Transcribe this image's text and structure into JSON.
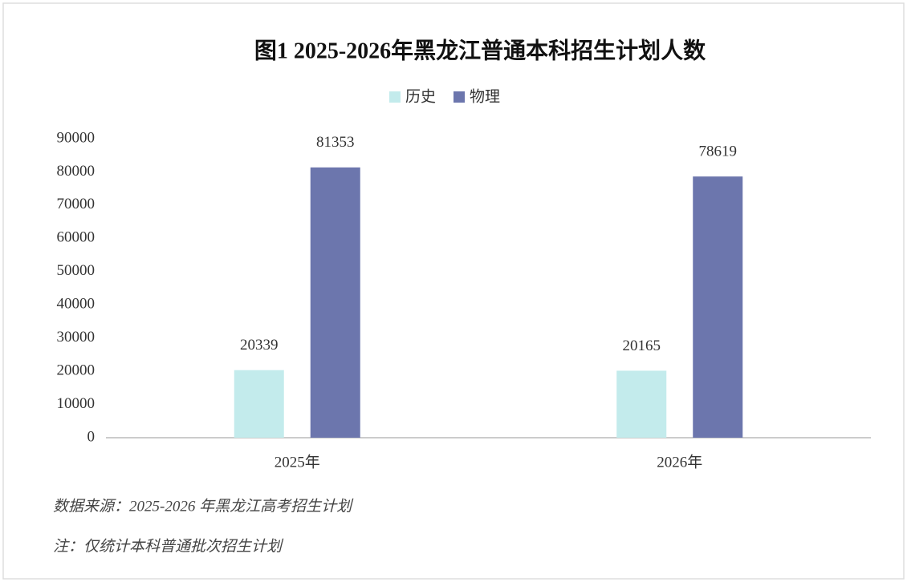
{
  "chart_data": {
    "type": "bar",
    "title": "图1  2025-2026年黑龙江普通本科招生计划人数",
    "categories": [
      "2025年",
      "2026年"
    ],
    "series": [
      {
        "name": "历史",
        "color": "#c3ebec",
        "values": [
          20339,
          20165
        ]
      },
      {
        "name": "物理",
        "color": "#6c76ad",
        "values": [
          81353,
          78619
        ]
      }
    ],
    "ylim": [
      0,
      90000
    ],
    "yticks": [
      0,
      10000,
      20000,
      30000,
      40000,
      50000,
      60000,
      70000,
      80000,
      90000
    ],
    "grid": false,
    "legend": "top",
    "notes": [
      "数据来源：2025-2026 年黑龙江高考招生计划",
      "注：仅统计本科普通批次招生计划"
    ]
  }
}
